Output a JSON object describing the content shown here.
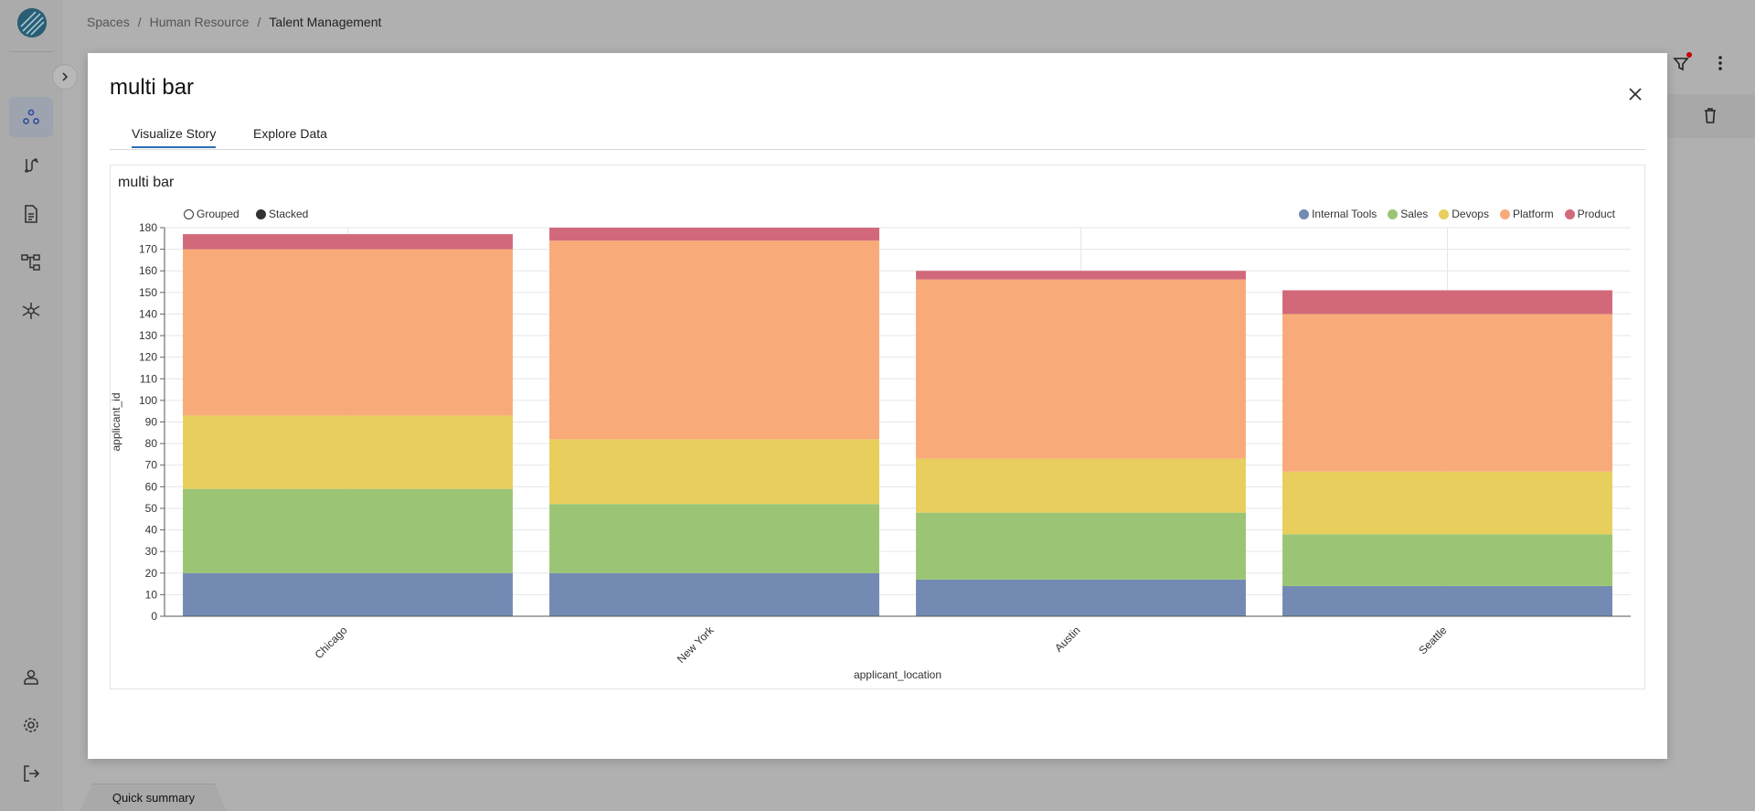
{
  "breadcrumb": [
    "Spaces",
    "Human Resource",
    "Talent Management"
  ],
  "quick_summary": "Quick summary",
  "modal": {
    "title": "multi bar",
    "tabs": [
      {
        "label": "Visualize Story",
        "active": true
      },
      {
        "label": "Explore Data",
        "active": false
      }
    ],
    "card_title": "multi bar",
    "toggles": {
      "grouped": "Grouped",
      "stacked": "Stacked",
      "selected": "Stacked"
    }
  },
  "chart_data": {
    "type": "bar",
    "stacked": true,
    "categories": [
      "Chicago",
      "New York",
      "Austin",
      "Seattle"
    ],
    "series": [
      {
        "name": "Internal Tools",
        "color": "#738bb3",
        "values": [
          20,
          20,
          17,
          14
        ]
      },
      {
        "name": "Sales",
        "color": "#9bc574",
        "values": [
          39,
          32,
          31,
          24
        ]
      },
      {
        "name": "Devops",
        "color": "#e8ce5c",
        "values": [
          34,
          30,
          25,
          29
        ]
      },
      {
        "name": "Platform",
        "color": "#f8ab79",
        "values": [
          77,
          92,
          83,
          73
        ]
      },
      {
        "name": "Product",
        "color": "#d2697b",
        "values": [
          7,
          6,
          4,
          11
        ]
      }
    ],
    "xlabel": "applicant_location",
    "ylabel": "applicant_id",
    "ylim": [
      0,
      180
    ],
    "yticks": [
      0,
      10,
      20,
      30,
      40,
      50,
      60,
      70,
      80,
      90,
      100,
      110,
      120,
      130,
      140,
      150,
      160,
      170,
      180
    ],
    "grid": true,
    "legend_position": "top-right"
  },
  "colors": {
    "accent": "#2c6fb6",
    "overlay": "#b0b0b0"
  }
}
